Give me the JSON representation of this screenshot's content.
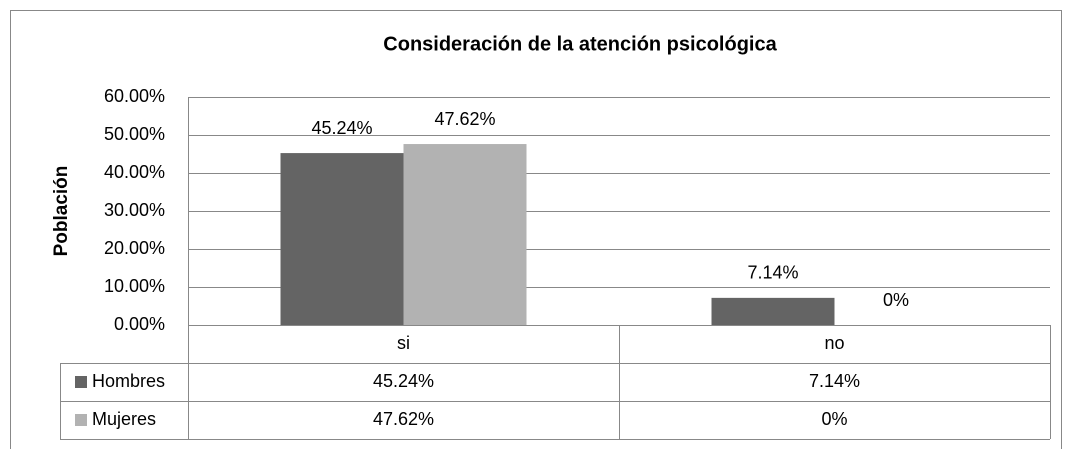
{
  "chart_data": {
    "type": "bar",
    "title": "Consideración de la atención psicológica",
    "y_label": "Población",
    "categories": [
      "si",
      "no"
    ],
    "series": [
      {
        "name": "Hombres",
        "color": "#646464",
        "values": [
          45.24,
          7.14
        ],
        "value_labels": [
          "45.24%",
          "7.14%"
        ]
      },
      {
        "name": "Mujeres",
        "color": "#b2b2b2",
        "values": [
          47.62,
          0
        ],
        "value_labels": [
          "47.62%",
          "0%"
        ]
      }
    ],
    "ylim": [
      0,
      60
    ],
    "yticks": [
      {
        "value": 0,
        "label": "0.00%"
      },
      {
        "value": 10,
        "label": "10.00%"
      },
      {
        "value": 20,
        "label": "20.00%"
      },
      {
        "value": 30,
        "label": "30.00%"
      },
      {
        "value": 40,
        "label": "40.00%"
      },
      {
        "value": 50,
        "label": "50.00%"
      },
      {
        "value": 60,
        "label": "60.00%"
      }
    ],
    "grid": true,
    "data_table": true
  }
}
